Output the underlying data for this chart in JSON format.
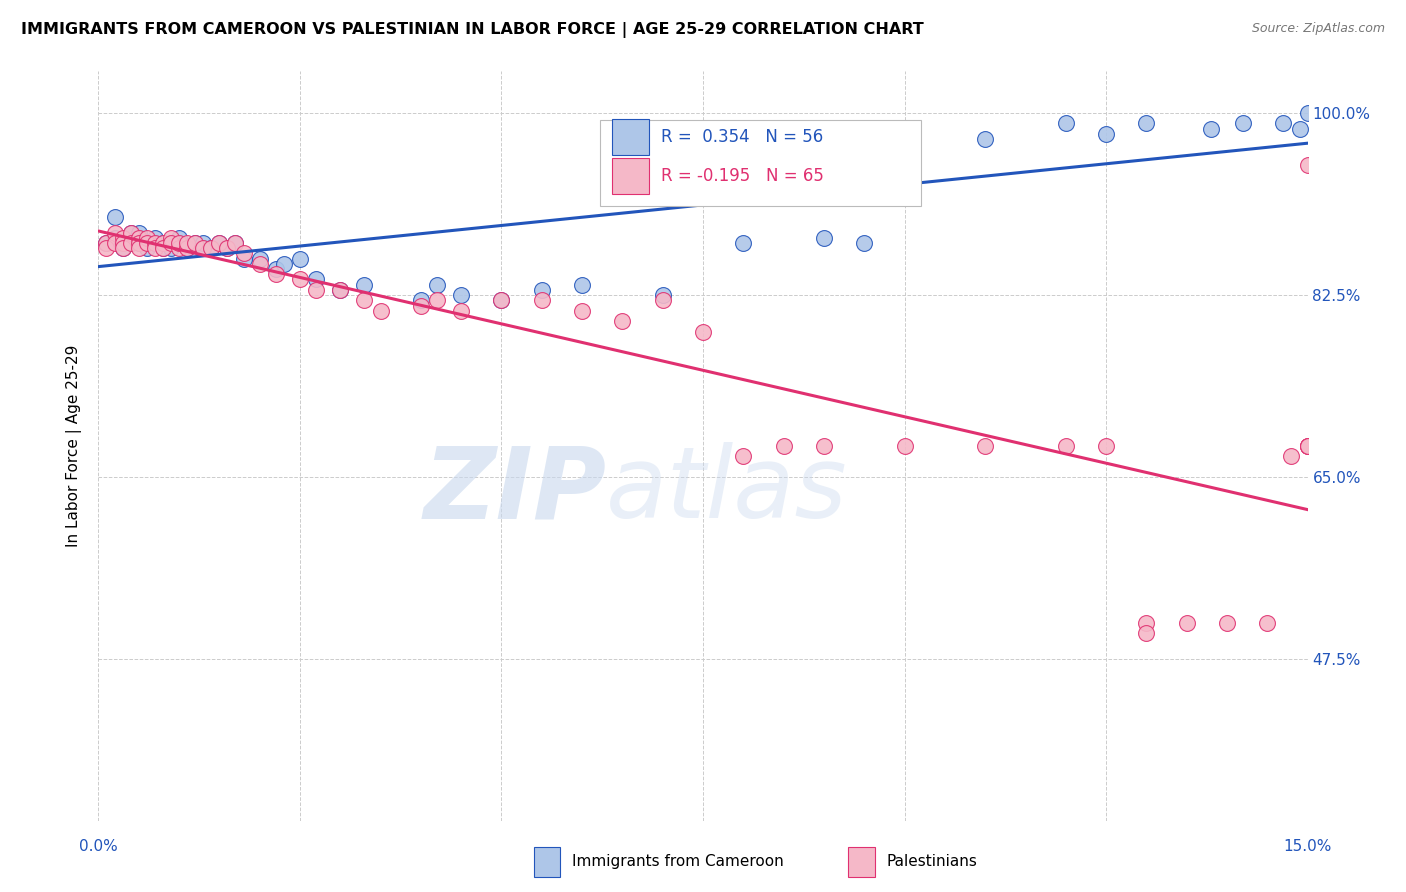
{
  "title": "IMMIGRANTS FROM CAMEROON VS PALESTINIAN IN LABOR FORCE | AGE 25-29 CORRELATION CHART",
  "source": "Source: ZipAtlas.com",
  "ylabel": "In Labor Force | Age 25-29",
  "xlim": [
    0.0,
    0.15
  ],
  "ylim": [
    0.32,
    1.04
  ],
  "y_tick_vals": [
    1.0,
    0.825,
    0.65,
    0.475
  ],
  "y_tick_labels": [
    "100.0%",
    "82.5%",
    "65.0%",
    "47.5%"
  ],
  "r_cameroon": 0.354,
  "n_cameroon": 56,
  "r_palestinian": -0.195,
  "n_palestinian": 65,
  "cameroon_color": "#aec6e8",
  "palestinian_color": "#f5b8c8",
  "line_cameroon_color": "#2255bb",
  "line_palestinian_color": "#e03070",
  "cam_x": [
    0.001,
    0.002,
    0.002,
    0.003,
    0.003,
    0.004,
    0.004,
    0.005,
    0.005,
    0.005,
    0.006,
    0.006,
    0.007,
    0.007,
    0.008,
    0.008,
    0.009,
    0.009,
    0.01,
    0.01,
    0.011,
    0.012,
    0.013,
    0.013,
    0.014,
    0.015,
    0.016,
    0.017,
    0.018,
    0.02,
    0.022,
    0.023,
    0.025,
    0.027,
    0.03,
    0.033,
    0.04,
    0.042,
    0.045,
    0.05,
    0.055,
    0.06,
    0.07,
    0.08,
    0.09,
    0.095,
    0.1,
    0.11,
    0.12,
    0.125,
    0.13,
    0.138,
    0.142,
    0.147,
    0.149,
    0.15
  ],
  "cam_y": [
    0.875,
    0.9,
    0.88,
    0.875,
    0.87,
    0.885,
    0.875,
    0.875,
    0.88,
    0.885,
    0.875,
    0.87,
    0.875,
    0.88,
    0.875,
    0.87,
    0.875,
    0.87,
    0.875,
    0.88,
    0.87,
    0.875,
    0.87,
    0.875,
    0.87,
    0.875,
    0.87,
    0.875,
    0.86,
    0.86,
    0.85,
    0.855,
    0.86,
    0.84,
    0.83,
    0.835,
    0.82,
    0.835,
    0.825,
    0.82,
    0.83,
    0.835,
    0.825,
    0.875,
    0.88,
    0.875,
    0.98,
    0.975,
    0.99,
    0.98,
    0.99,
    0.985,
    0.99,
    0.99,
    0.985,
    1.0
  ],
  "pal_x": [
    0.001,
    0.001,
    0.002,
    0.002,
    0.003,
    0.003,
    0.003,
    0.004,
    0.004,
    0.005,
    0.005,
    0.005,
    0.006,
    0.006,
    0.007,
    0.007,
    0.008,
    0.008,
    0.009,
    0.009,
    0.01,
    0.01,
    0.011,
    0.011,
    0.012,
    0.013,
    0.014,
    0.015,
    0.016,
    0.017,
    0.018,
    0.02,
    0.022,
    0.025,
    0.027,
    0.03,
    0.033,
    0.035,
    0.04,
    0.042,
    0.045,
    0.05,
    0.055,
    0.06,
    0.065,
    0.07,
    0.075,
    0.08,
    0.085,
    0.09,
    0.1,
    0.11,
    0.12,
    0.125,
    0.13,
    0.13,
    0.135,
    0.14,
    0.145,
    0.148,
    0.15,
    0.15,
    0.15,
    0.15,
    0.15
  ],
  "pal_y": [
    0.875,
    0.87,
    0.885,
    0.875,
    0.88,
    0.875,
    0.87,
    0.885,
    0.875,
    0.88,
    0.875,
    0.87,
    0.88,
    0.875,
    0.875,
    0.87,
    0.875,
    0.87,
    0.88,
    0.875,
    0.87,
    0.875,
    0.87,
    0.875,
    0.875,
    0.87,
    0.87,
    0.875,
    0.87,
    0.875,
    0.865,
    0.855,
    0.845,
    0.84,
    0.83,
    0.83,
    0.82,
    0.81,
    0.815,
    0.82,
    0.81,
    0.82,
    0.82,
    0.81,
    0.8,
    0.82,
    0.79,
    0.67,
    0.68,
    0.68,
    0.68,
    0.68,
    0.68,
    0.68,
    0.51,
    0.5,
    0.51,
    0.51,
    0.51,
    0.67,
    0.68,
    0.68,
    0.68,
    0.95,
    0.68
  ]
}
